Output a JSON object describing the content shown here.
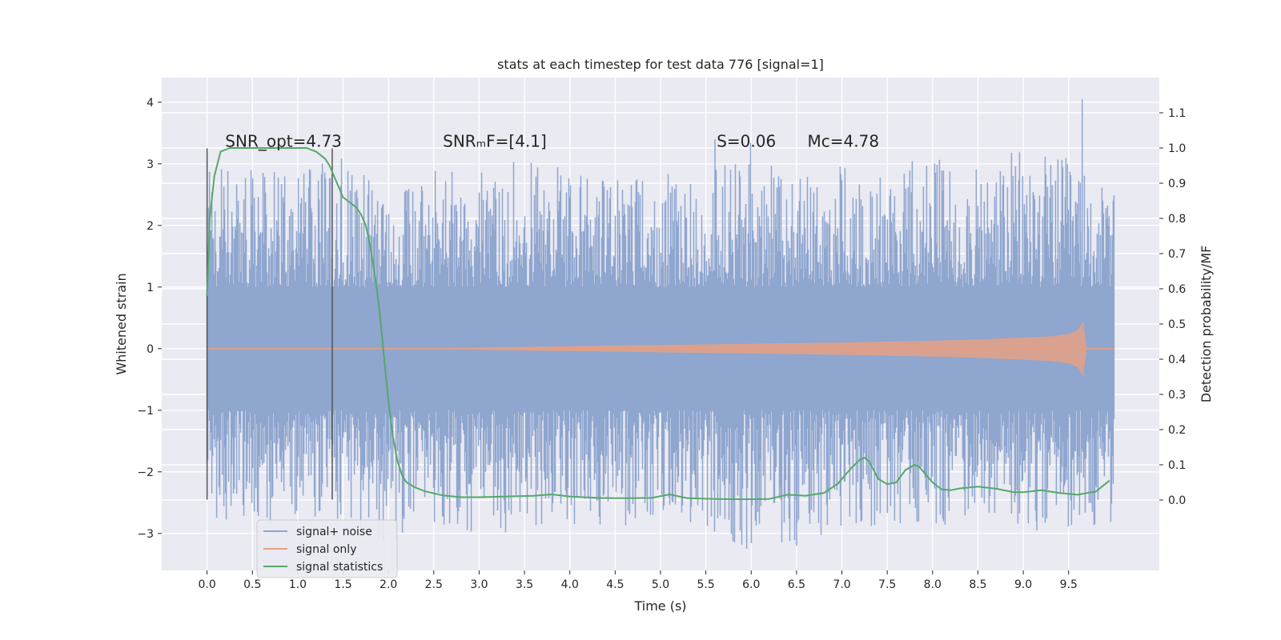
{
  "chart_data": {
    "type": "line",
    "title": "stats at each timestep for test data 776 [signal=1]",
    "xlabel": "Time (s)",
    "ylabel": "Whitened strain",
    "ylabel_right": "Detection probability/MF",
    "xlim": [
      -0.5,
      10.5
    ],
    "ylim": [
      -3.6,
      4.4
    ],
    "ylim_right": [
      -0.2,
      1.2
    ],
    "x_ticks": [
      0.0,
      0.5,
      1.0,
      1.5,
      2.0,
      2.5,
      3.0,
      3.5,
      4.0,
      4.5,
      5.0,
      5.5,
      6.0,
      6.5,
      7.0,
      7.5,
      8.0,
      8.5,
      9.0,
      9.5
    ],
    "x_tick_labels": [
      "0.0",
      "0.5",
      "1.0",
      "1.5",
      "2.0",
      "2.5",
      "3.0",
      "3.5",
      "4.0",
      "4.5",
      "5.0",
      "5.5",
      "6.0",
      "6.5",
      "7.0",
      "7.5",
      "8.0",
      "8.5",
      "9.0",
      "9.5"
    ],
    "y_ticks": [
      4,
      3,
      2,
      1,
      0,
      -1,
      -2,
      -3
    ],
    "y_tick_labels": [
      "4",
      "3",
      "2",
      "1",
      "0",
      "−1",
      "−2",
      "−3"
    ],
    "y_ticks_right": [
      1.1,
      1.0,
      0.9,
      0.8,
      0.7,
      0.6,
      0.5,
      0.4,
      0.3,
      0.2,
      0.1,
      0.0
    ],
    "y_tick_labels_right": [
      "1.1",
      "1.0",
      "0.9",
      "0.8",
      "0.7",
      "0.6",
      "0.5",
      "0.4",
      "0.3",
      "0.2",
      "0.1",
      "0.0"
    ],
    "grid": true,
    "legend_position": "lower-left",
    "annotations": [
      {
        "text": "SNR_opt=4.73",
        "x": 0.2,
        "y": 3.25
      },
      {
        "text": "SNRₘF=[4.1]",
        "x": 2.6,
        "y": 3.25
      },
      {
        "text": "S=0.06",
        "x": 5.62,
        "y": 3.25
      },
      {
        "text": "Mᴄ=4.78",
        "x": 6.62,
        "y": 3.25
      }
    ],
    "vertical_lines": [
      {
        "x": 0.0,
        "y_range": [
          -2.45,
          3.25
        ]
      },
      {
        "x": 1.38,
        "y_range": [
          -2.45,
          3.25
        ]
      }
    ],
    "series": [
      {
        "name": "signal+ noise",
        "color": "#8fa6cf",
        "axis": "left",
        "x_range": [
          0.0,
          10.0
        ],
        "envelope": {
          "x": [
            0.0,
            0.5,
            1.0,
            1.5,
            2.0,
            2.5,
            3.0,
            3.5,
            4.0,
            4.5,
            5.0,
            5.5,
            6.0,
            6.5,
            7.0,
            7.5,
            8.0,
            8.5,
            9.0,
            9.5,
            10.0
          ],
          "upper": [
            3.0,
            2.9,
            2.9,
            3.1,
            2.5,
            2.9,
            2.9,
            3.1,
            2.9,
            2.8,
            2.9,
            2.8,
            3.4,
            2.8,
            3.0,
            2.9,
            3.2,
            2.9,
            3.3,
            3.1,
            2.5
          ],
          "lower": [
            -2.8,
            -2.9,
            -2.7,
            -2.8,
            -3.2,
            -2.9,
            -3.0,
            -3.0,
            -2.9,
            -3.0,
            -2.8,
            -2.9,
            -3.3,
            -3.2,
            -2.9,
            -3.0,
            -2.9,
            -2.8,
            -3.0,
            -2.9,
            -2.9
          ]
        },
        "peaks": [
          {
            "x": 5.6,
            "y": 3.4
          },
          {
            "x": 9.65,
            "y": 4.05
          },
          {
            "x": 6.5,
            "y": -3.2
          },
          {
            "x": 5.95,
            "y": -3.25
          },
          {
            "x": 9.15,
            "y": -2.95
          }
        ]
      },
      {
        "name": "signal only",
        "color": "#e5a085",
        "axis": "left",
        "envelope": {
          "x": [
            0.0,
            2.0,
            3.0,
            4.0,
            5.0,
            6.0,
            7.0,
            8.0,
            8.5,
            9.0,
            9.3,
            9.5,
            9.6,
            9.66,
            9.7,
            10.0
          ],
          "amplitude": [
            0.0,
            0.0,
            0.02,
            0.04,
            0.06,
            0.08,
            0.1,
            0.13,
            0.15,
            0.18,
            0.2,
            0.24,
            0.3,
            0.45,
            0.0,
            0.0
          ]
        }
      },
      {
        "name": "signal statistics",
        "color": "#55a868",
        "axis": "right",
        "x": [
          0.0,
          0.03,
          0.08,
          0.15,
          0.25,
          0.4,
          0.6,
          0.8,
          1.0,
          1.1,
          1.2,
          1.3,
          1.35,
          1.4,
          1.45,
          1.5,
          1.55,
          1.6,
          1.65,
          1.7,
          1.75,
          1.8,
          1.85,
          1.9,
          1.95,
          2.0,
          2.05,
          2.1,
          2.15,
          2.2,
          2.3,
          2.4,
          2.6,
          2.8,
          3.0,
          3.3,
          3.6,
          3.8,
          4.0,
          4.3,
          4.6,
          4.9,
          5.1,
          5.3,
          5.6,
          5.9,
          6.2,
          6.4,
          6.6,
          6.8,
          6.95,
          7.1,
          7.2,
          7.25,
          7.3,
          7.4,
          7.5,
          7.6,
          7.7,
          7.8,
          7.85,
          7.9,
          8.0,
          8.1,
          8.2,
          8.3,
          8.5,
          8.7,
          8.9,
          9.0,
          9.2,
          9.4,
          9.6,
          9.8,
          9.95
        ],
        "values": [
          0.58,
          0.8,
          0.92,
          0.99,
          1.0,
          1.0,
          1.0,
          1.0,
          1.0,
          1.0,
          0.99,
          0.97,
          0.95,
          0.92,
          0.89,
          0.86,
          0.85,
          0.84,
          0.83,
          0.81,
          0.78,
          0.72,
          0.64,
          0.54,
          0.41,
          0.28,
          0.18,
          0.11,
          0.07,
          0.05,
          0.035,
          0.025,
          0.013,
          0.008,
          0.008,
          0.01,
          0.012,
          0.016,
          0.01,
          0.006,
          0.005,
          0.006,
          0.016,
          0.005,
          0.003,
          0.002,
          0.003,
          0.015,
          0.012,
          0.02,
          0.045,
          0.09,
          0.115,
          0.12,
          0.11,
          0.06,
          0.045,
          0.05,
          0.085,
          0.1,
          0.095,
          0.08,
          0.05,
          0.03,
          0.028,
          0.033,
          0.038,
          0.032,
          0.022,
          0.022,
          0.028,
          0.02,
          0.015,
          0.024,
          0.055
        ]
      }
    ]
  }
}
